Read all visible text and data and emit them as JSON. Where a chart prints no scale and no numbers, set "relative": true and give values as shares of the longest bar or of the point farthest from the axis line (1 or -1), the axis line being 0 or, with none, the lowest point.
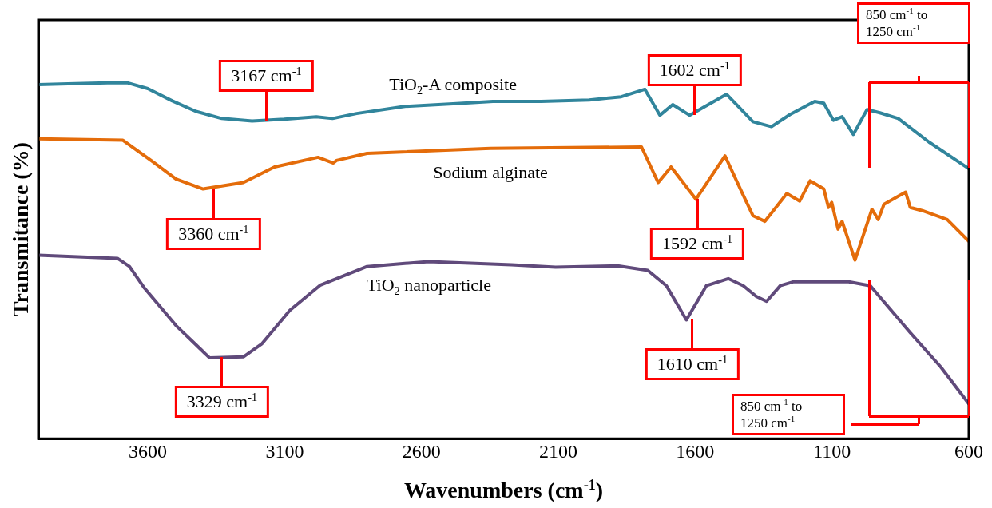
{
  "chart_data": {
    "type": "line",
    "relative": true,
    "xlabel": "Wavenumbers (cm$^{-1}$)",
    "ylabel": "Transmitance (%)",
    "xlim": [
      4000,
      600
    ],
    "xticks": [
      3600,
      3100,
      2600,
      2100,
      1600,
      1100,
      600
    ],
    "grid": false,
    "legend": false,
    "marker": "none",
    "line_style": "solid",
    "series": [
      {
        "name": "TiO$_{2}$-A composite",
        "color": "#31859c",
        "x": [
          4000,
          3864,
          3747,
          3673,
          3600,
          3512,
          3424,
          3330,
          3219,
          3101,
          2984,
          2925,
          2837,
          2661,
          2485,
          2339,
          2163,
          1987,
          1870,
          1784,
          1729,
          1682,
          1620,
          1485,
          1389,
          1321,
          1254,
          1163,
          1130,
          1095,
          1063,
          1022,
          972,
          925,
          858,
          746,
          600
        ],
        "values": [
          0.995,
          0.998,
          1.0,
          1.0,
          0.984,
          0.95,
          0.92,
          0.9,
          0.893,
          0.898,
          0.905,
          0.9,
          0.914,
          0.934,
          0.941,
          0.948,
          0.948,
          0.952,
          0.961,
          0.982,
          0.909,
          0.939,
          0.909,
          0.968,
          0.891,
          0.877,
          0.911,
          0.948,
          0.943,
          0.895,
          0.905,
          0.855,
          0.925,
          0.916,
          0.9,
          0.834,
          0.759
        ]
      },
      {
        "name": "Sodium alginate",
        "color": "#e46c0a",
        "x": [
          4000,
          3691,
          3588,
          3497,
          3398,
          3251,
          3137,
          2978,
          2922,
          2911,
          2799,
          2348,
          1796,
          1735,
          1688,
          1597,
          1491,
          1424,
          1389,
          1345,
          1265,
          1218,
          1180,
          1130,
          1113,
          1101,
          1078,
          1063,
          1016,
          954,
          931,
          910,
          831,
          814,
          770,
          679,
          600
        ],
        "values": [
          0.843,
          0.839,
          0.782,
          0.73,
          0.702,
          0.72,
          0.764,
          0.791,
          0.775,
          0.782,
          0.802,
          0.816,
          0.82,
          0.72,
          0.764,
          0.673,
          0.795,
          0.684,
          0.627,
          0.611,
          0.689,
          0.668,
          0.725,
          0.702,
          0.65,
          0.664,
          0.589,
          0.611,
          0.502,
          0.645,
          0.616,
          0.659,
          0.693,
          0.65,
          0.641,
          0.616,
          0.555
        ]
      },
      {
        "name": "TiO$_{2}$ nanoparticle",
        "color": "#604a7b",
        "x": [
          4000,
          3711,
          3667,
          3612,
          3497,
          3374,
          3251,
          3184,
          3081,
          2969,
          2799,
          2573,
          2271,
          2110,
          1884,
          1773,
          1705,
          1632,
          1559,
          1479,
          1424,
          1377,
          1339,
          1289,
          1242,
          1039,
          960,
          814,
          703,
          600
        ],
        "values": [
          0.516,
          0.507,
          0.484,
          0.423,
          0.318,
          0.227,
          0.23,
          0.266,
          0.361,
          0.432,
          0.484,
          0.498,
          0.489,
          0.482,
          0.486,
          0.473,
          0.43,
          0.334,
          0.43,
          0.45,
          0.43,
          0.4,
          0.386,
          0.43,
          0.441,
          0.441,
          0.43,
          0.298,
          0.202,
          0.098
        ]
      }
    ],
    "annotations": [
      {
        "text": "3167 cm$^{-1}$",
        "x": 3167,
        "y": 0.895
      },
      {
        "text": "1602 cm$^{-1}$",
        "x": 1602,
        "y": 0.909
      },
      {
        "text": "3360 cm$^{-1}$",
        "x": 3360,
        "y": 0.7
      },
      {
        "text": "1592 cm$^{-1}$",
        "x": 1592,
        "y": 0.673
      },
      {
        "text": "3329 cm$^{-1}$",
        "x": 3329,
        "y": 0.23
      },
      {
        "text": "1610 cm$^{-1}$",
        "x": 1610,
        "y": 0.334
      },
      "850 cm$^{-1}$ to 1250 cm$^{-1}$",
      "850 cm$^{-1}$ to 1250 cm$^{-1}$"
    ]
  }
}
